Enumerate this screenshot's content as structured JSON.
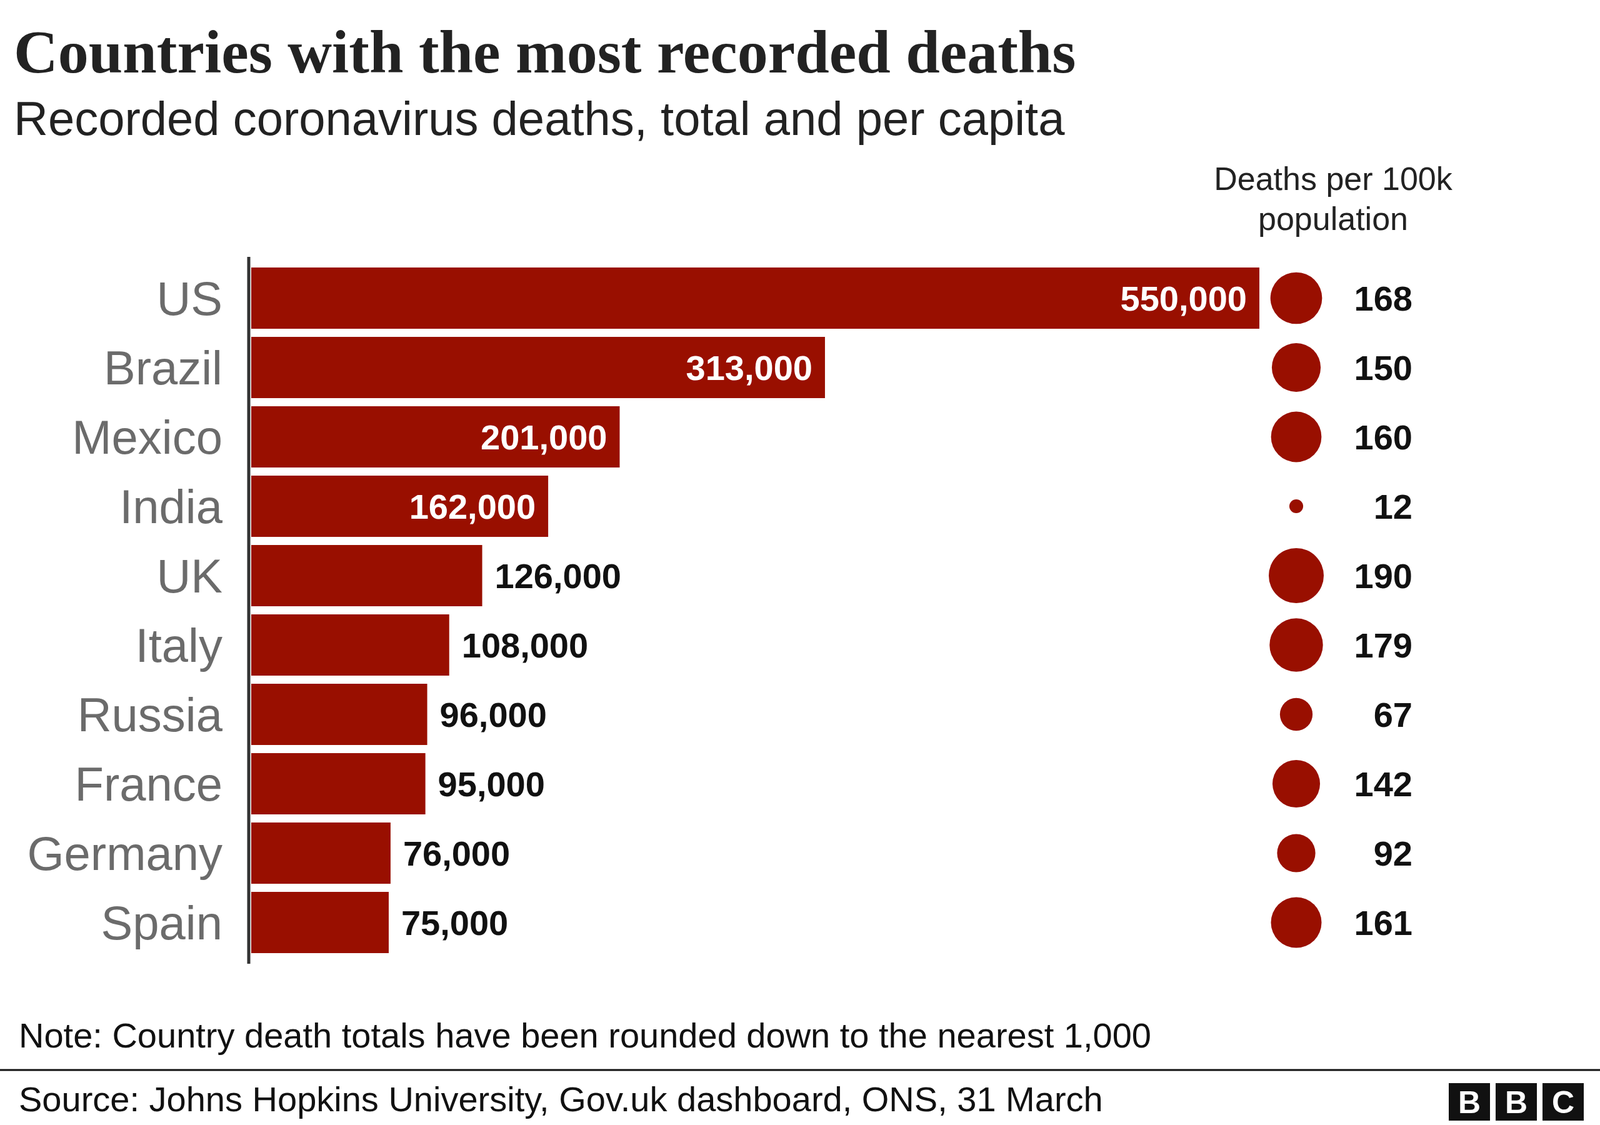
{
  "chart_data": {
    "type": "bar",
    "orientation": "horizontal",
    "title": "Countries with the most recorded deaths",
    "subtitle": "Recorded coronavirus deaths, total and per capita",
    "categories": [
      "US",
      "Brazil",
      "Mexico",
      "India",
      "UK",
      "Italy",
      "Russia",
      "France",
      "Germany",
      "Spain"
    ],
    "values": [
      550000,
      313000,
      201000,
      162000,
      126000,
      108000,
      96000,
      95000,
      76000,
      75000
    ],
    "value_labels": [
      "550,000",
      "313,000",
      "201,000",
      "162,000",
      "126,000",
      "108,000",
      "96,000",
      "95,000",
      "76,000",
      "75,000"
    ],
    "data_labels": true,
    "color": "#990f00",
    "xlim": [
      0,
      550000
    ],
    "tick_labels": false,
    "per_capita": {
      "label": "Deaths per 100k population",
      "values": [
        168,
        150,
        160,
        12,
        190,
        179,
        67,
        142,
        92,
        161
      ],
      "color": "#990f00"
    },
    "note": "Note: Country death totals have been rounded down to the nearest 1,000",
    "source": "Source: Johns Hopkins University, Gov.uk dashboard, ONS, 31 March",
    "logo": "BBC"
  }
}
